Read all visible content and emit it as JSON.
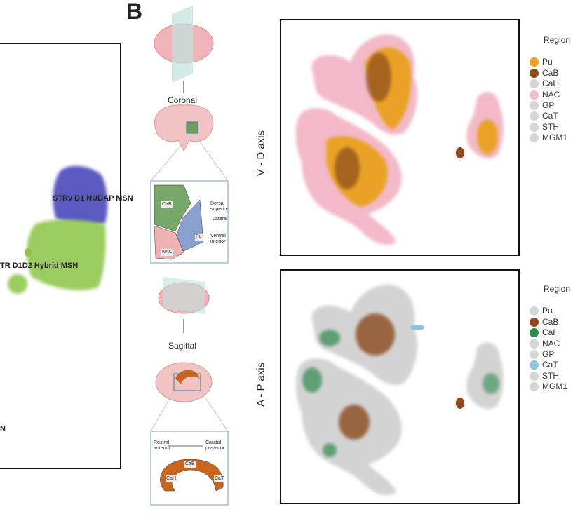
{
  "panel_label": "B",
  "left_panel": {
    "labels": [
      "STRv D1 NUDAP MSN",
      "TR D1D2 Hybrid MSN",
      "N"
    ]
  },
  "coronal": {
    "label": "Coronal",
    "regions": [
      "CaB",
      "Pu",
      "NAC"
    ],
    "axes": [
      "Dorsal superior",
      "Lateral",
      "Ventral inferior"
    ]
  },
  "sagittal": {
    "label": "Sagittal",
    "axes": [
      "Rostral anterior",
      "Caudal posterior"
    ],
    "regions": [
      "CaB",
      "CaH",
      "CaT"
    ]
  },
  "plots": [
    {
      "axis_label": "V - D axis",
      "legend_title": "Region",
      "legend": [
        {
          "name": "Pu",
          "color": "#e9a227"
        },
        {
          "name": "CaB",
          "color": "#8b4a1f"
        },
        {
          "name": "CaH",
          "color": "#d6d6d6"
        },
        {
          "name": "NAC",
          "color": "#f3b9c8"
        },
        {
          "name": "GP",
          "color": "#d6d6d6"
        },
        {
          "name": "CaT",
          "color": "#d6d6d6"
        },
        {
          "name": "STH",
          "color": "#d6d6d6"
        },
        {
          "name": "MGM1",
          "color": "#d6d6d6"
        }
      ]
    },
    {
      "axis_label": "A - P axis",
      "legend_title": "Region",
      "legend": [
        {
          "name": "Pu",
          "color": "#d6d6d6"
        },
        {
          "name": "CaB",
          "color": "#8b4a1f"
        },
        {
          "name": "CaH",
          "color": "#2f8a4c"
        },
        {
          "name": "NAC",
          "color": "#d6d6d6"
        },
        {
          "name": "GP",
          "color": "#d6d6d6"
        },
        {
          "name": "CaT",
          "color": "#8cc4e0"
        },
        {
          "name": "STH",
          "color": "#d6d6d6"
        },
        {
          "name": "MGM1",
          "color": "#d6d6d6"
        }
      ]
    }
  ]
}
